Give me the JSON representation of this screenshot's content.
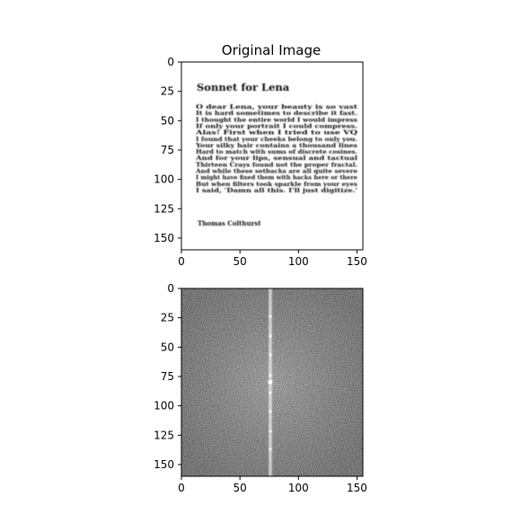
{
  "chart_data": [
    {
      "type": "image",
      "title": "Original Image",
      "xlim": [
        0,
        155
      ],
      "ylim": [
        160,
        0
      ],
      "xticks": [
        0,
        50,
        100,
        150
      ],
      "yticks": [
        0,
        25,
        50,
        75,
        100,
        125,
        150
      ],
      "grid": false,
      "content": {
        "heading": "Sonnet for Lena",
        "lines": [
          "O dear Lena, your beauty is so vast",
          "It is hard sometimes to describe it fast.",
          "I thought the entire world I would impress",
          "If only your portrait I could compress.",
          "Alas! First when I tried to use VQ",
          "I found that your cheeks belong to only you.",
          "Your silky hair contains a thousand lines",
          "Hard to match with sums of discrete cosines.",
          "And for your lips, sensual and tactual",
          "Thirteen Crays found not the proper fractal.",
          "And while these setbacks are all quite severe",
          "I might have fixed them with hacks here or there",
          "But when filters took sparkle from your eyes",
          "I said, 'Damn all this. I'll just digitize.'"
        ],
        "signature": "Thomas Colthurst"
      }
    },
    {
      "type": "image",
      "title": "",
      "xlim": [
        0,
        155
      ],
      "ylim": [
        160,
        0
      ],
      "xticks": [
        0,
        50,
        100,
        150
      ],
      "yticks": [
        0,
        25,
        50,
        75,
        100,
        125,
        150
      ],
      "grid": false,
      "colormap": "gray",
      "content": "magnitude spectrum"
    }
  ]
}
